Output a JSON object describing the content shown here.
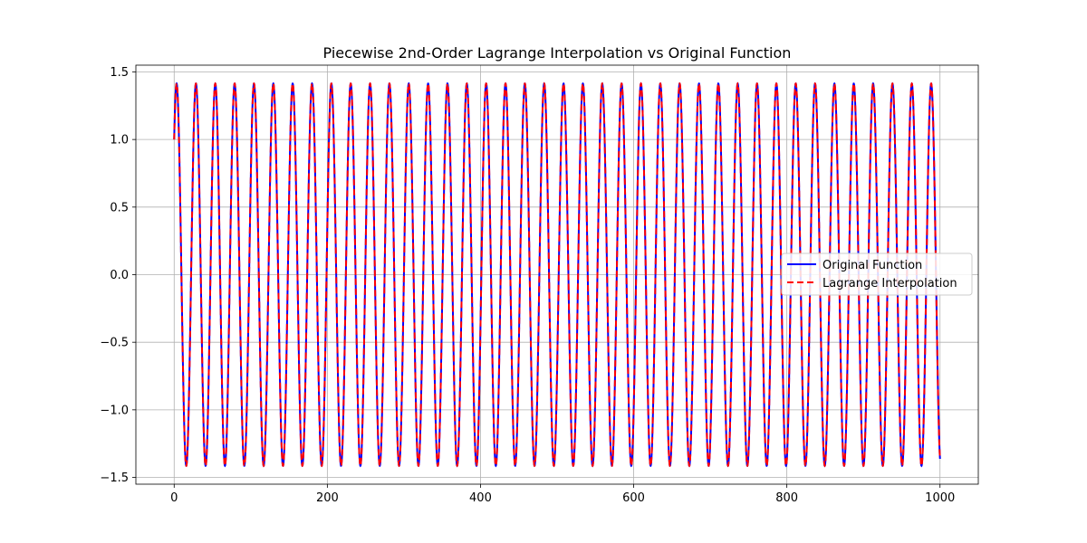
{
  "chart_data": {
    "type": "line",
    "title": "Piecewise 2nd-Order Lagrange Interpolation vs Original Function",
    "xlabel": "",
    "ylabel": "",
    "xlim": [
      -50,
      1050
    ],
    "ylim": [
      -1.55,
      1.55
    ],
    "x_ticks": [
      0,
      200,
      400,
      600,
      800,
      1000
    ],
    "x_tick_labels": [
      "0",
      "200",
      "400",
      "600",
      "800",
      "1000"
    ],
    "y_ticks": [
      -1.5,
      -1.0,
      -0.5,
      0.0,
      0.5,
      1.0,
      1.5
    ],
    "y_tick_labels": [
      "−1.5",
      "−1.0",
      "−0.5",
      "0.0",
      "0.5",
      "1.0",
      "1.5"
    ],
    "grid": true,
    "legend_position": "center-right",
    "function_model": {
      "form": "sin(w*x) + cos(w*x)",
      "x_start": 0,
      "x_end": 1000,
      "omega": 0.2487
    },
    "series": [
      {
        "name": "Original Function",
        "color": "#0000ff",
        "style": "solid"
      },
      {
        "name": "Lagrange Interpolation",
        "color": "#ff0000",
        "style": "dashed"
      }
    ]
  }
}
